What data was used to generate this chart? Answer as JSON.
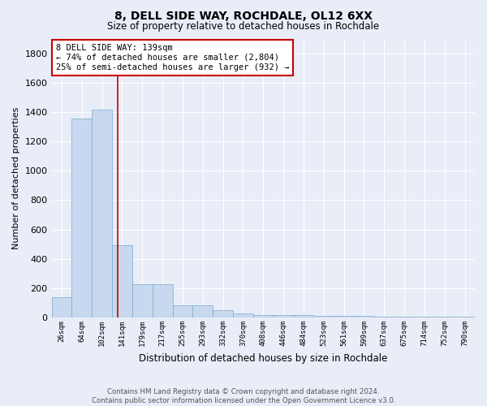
{
  "title": "8, DELL SIDE WAY, ROCHDALE, OL12 6XX",
  "subtitle": "Size of property relative to detached houses in Rochdale",
  "xlabel": "Distribution of detached houses by size in Rochdale",
  "ylabel": "Number of detached properties",
  "footnote1": "Contains HM Land Registry data © Crown copyright and database right 2024.",
  "footnote2": "Contains public sector information licensed under the Open Government Licence v3.0.",
  "bin_labels": [
    "26sqm",
    "64sqm",
    "102sqm",
    "141sqm",
    "179sqm",
    "217sqm",
    "255sqm",
    "293sqm",
    "332sqm",
    "370sqm",
    "408sqm",
    "446sqm",
    "484sqm",
    "523sqm",
    "561sqm",
    "599sqm",
    "637sqm",
    "675sqm",
    "714sqm",
    "752sqm",
    "790sqm"
  ],
  "bar_values": [
    140,
    1355,
    1415,
    495,
    225,
    225,
    85,
    85,
    50,
    30,
    20,
    15,
    15,
    10,
    10,
    10,
    5,
    5,
    5,
    5,
    5
  ],
  "bar_color": "#c8d8ee",
  "bar_edge_color": "#7aabcf",
  "background_color": "#e8edf8",
  "grid_color": "#ffffff",
  "vline_x": 2.77,
  "vline_color": "#cc0000",
  "annotation_text": "8 DELL SIDE WAY: 139sqm\n← 74% of detached houses are smaller (2,804)\n25% of semi-detached houses are larger (932) →",
  "annotation_box_color": "#ffffff",
  "annotation_box_edge": "#cc0000",
  "ylim": [
    0,
    1900
  ],
  "yticks": [
    0,
    200,
    400,
    600,
    800,
    1000,
    1200,
    1400,
    1600,
    1800
  ]
}
